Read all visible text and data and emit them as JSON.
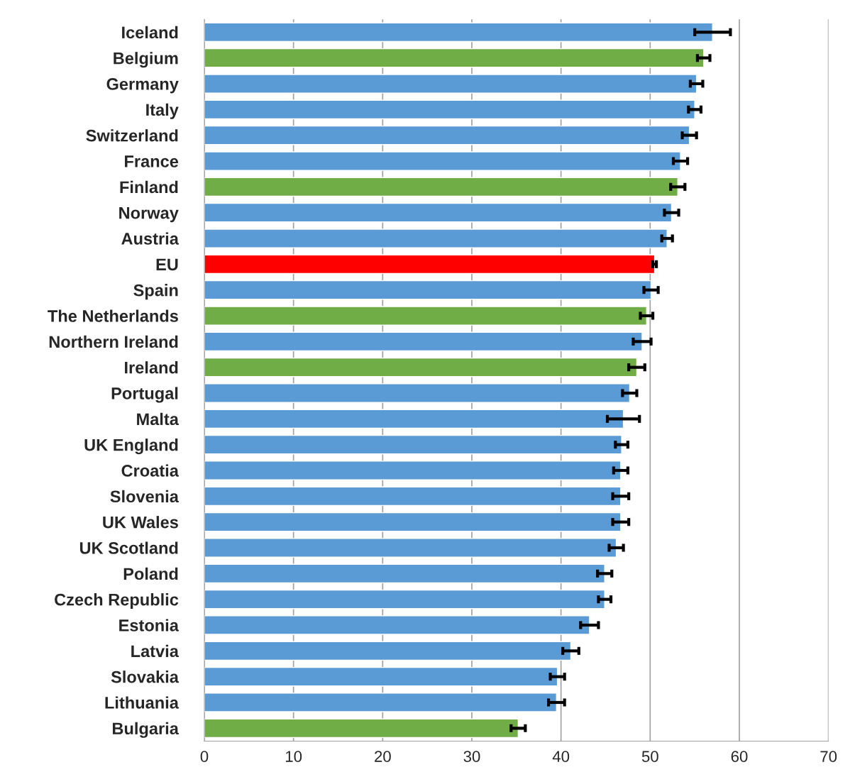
{
  "chart_data": {
    "type": "bar",
    "orientation": "horizontal",
    "categories": [
      "Iceland",
      "Belgium",
      "Germany",
      "Italy",
      "Switzerland",
      "France",
      "Finland",
      "Norway",
      "Austria",
      "EU",
      "Spain",
      "The Netherlands",
      "Northern Ireland",
      "Ireland",
      "Portugal",
      "Malta",
      "UK England",
      "Croatia",
      "Slovenia",
      "UK Wales",
      "UK Scotland",
      "Poland",
      "Czech Republic",
      "Estonia",
      "Latvia",
      "Slovakia",
      "Lithuania",
      "Bulgaria"
    ],
    "values": [
      57.0,
      56.0,
      55.2,
      55.0,
      54.4,
      53.4,
      53.1,
      52.4,
      51.9,
      50.5,
      50.1,
      49.6,
      49.1,
      48.5,
      47.7,
      47.0,
      46.8,
      46.7,
      46.7,
      46.7,
      46.2,
      44.9,
      44.9,
      43.2,
      41.1,
      39.6,
      39.5,
      35.2
    ],
    "errors": [
      2.0,
      0.7,
      0.7,
      0.7,
      0.8,
      0.8,
      0.8,
      0.8,
      0.6,
      0.2,
      0.8,
      0.7,
      1.0,
      0.9,
      0.8,
      1.8,
      0.7,
      0.8,
      0.9,
      0.9,
      0.8,
      0.8,
      0.7,
      1.0,
      0.9,
      0.8,
      0.9,
      0.8
    ],
    "colors": [
      "#5b9bd5",
      "#70ad47",
      "#5b9bd5",
      "#5b9bd5",
      "#5b9bd5",
      "#5b9bd5",
      "#70ad47",
      "#5b9bd5",
      "#5b9bd5",
      "#ff0000",
      "#5b9bd5",
      "#70ad47",
      "#5b9bd5",
      "#70ad47",
      "#5b9bd5",
      "#5b9bd5",
      "#5b9bd5",
      "#5b9bd5",
      "#5b9bd5",
      "#5b9bd5",
      "#5b9bd5",
      "#5b9bd5",
      "#5b9bd5",
      "#5b9bd5",
      "#5b9bd5",
      "#5b9bd5",
      "#5b9bd5",
      "#70ad47"
    ],
    "xlim": [
      0,
      70
    ],
    "xticks": [
      0,
      10,
      20,
      30,
      40,
      50,
      60,
      70
    ],
    "grid": "x"
  }
}
